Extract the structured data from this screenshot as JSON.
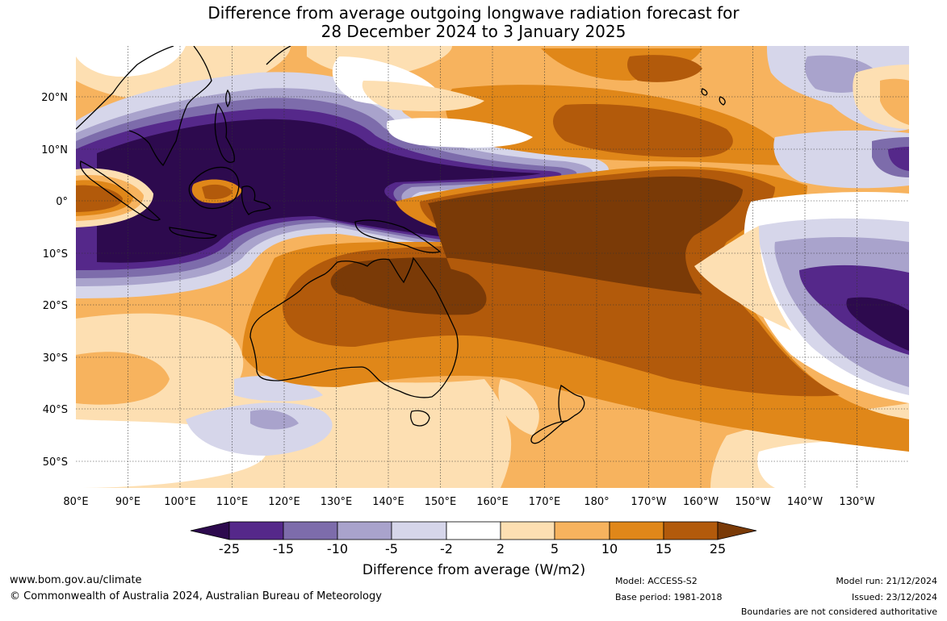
{
  "title": {
    "line1": "Difference from average outgoing longwave radiation forecast for",
    "line2": "28 December 2024 to 3 January 2025"
  },
  "map": {
    "lon_labels": [
      "80°E",
      "90°E",
      "100°E",
      "110°E",
      "120°E",
      "130°E",
      "140°E",
      "150°E",
      "160°E",
      "170°E",
      "180°",
      "170°W",
      "160°W",
      "150°W",
      "140°W",
      "130°W"
    ],
    "lat_labels": [
      "20°N",
      "10°N",
      "0°",
      "10°S",
      "20°S",
      "30°S",
      "40°S",
      "50°S"
    ],
    "extent": {
      "lon_min": 80,
      "lon_max": 240,
      "lat_min": -55,
      "lat_max": 30
    }
  },
  "colorbar": {
    "ticks": [
      "-25",
      "-15",
      "-10",
      "-5",
      "-2",
      "2",
      "5",
      "10",
      "15",
      "25"
    ],
    "colors": [
      "#2d0a4e",
      "#55288a",
      "#7d6cab",
      "#a9a3cc",
      "#d6d6ea",
      "#ffffff",
      "#fddfb2",
      "#f7b35e",
      "#e08719",
      "#b25a0b",
      "#7a3a07"
    ],
    "label": "Difference from average (W/m2)"
  },
  "footer": {
    "url": "www.bom.gov.au/climate",
    "copyright": "© Commonwealth of Australia 2024, Australian Bureau of Meteorology",
    "model": "Model: ACCESS-S2",
    "base_period": "Base period: 1981-2018",
    "model_run": "Model run: 21/12/2024",
    "issued": "Issued: 23/12/2024",
    "disclaimer": "Boundaries are not considered authoritative"
  }
}
